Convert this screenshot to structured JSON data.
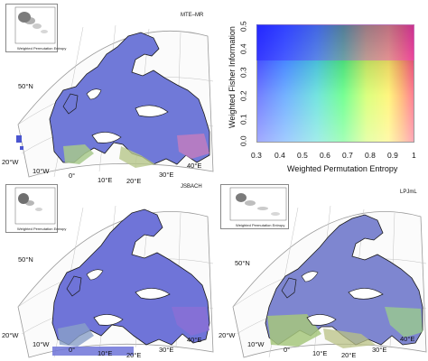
{
  "panels": [
    {
      "model": "MTE–MR",
      "lat_labels": [
        "50°N",
        "20°W"
      ],
      "lon_labels": [
        "10°W",
        "0°",
        "10°E",
        "20°E",
        "30°E",
        "40°E"
      ]
    },
    {
      "model": "JSBACH",
      "lat_labels": [
        "50°N",
        "20°W"
      ],
      "lon_labels": [
        "10°W",
        "0°",
        "10°E",
        "20°E",
        "30°E",
        "40°E"
      ]
    },
    {
      "model": "LPJmL",
      "lat_labels": [
        "50°N",
        "20°W"
      ],
      "lon_labels": [
        "10°W",
        "0°",
        "10°E",
        "20°E",
        "30°E",
        "40°E"
      ]
    }
  ],
  "inset": {
    "ylabel": "Weighted Fisher Information",
    "xlabel": "Weighted Permutation Entropy",
    "xticks": [
      "0.3",
      "0.4",
      "0.5",
      "0.6",
      "0.7",
      "0.8",
      "0.9",
      "1"
    ],
    "yticks": [
      "0.1",
      "0.2",
      "0.3",
      "0.4",
      "0.5"
    ]
  },
  "legend": {
    "ylabel": "Weighted Fisher Information",
    "xlabel": "Weighted Permutation Entropy",
    "xticks": [
      "0.3",
      "0.4",
      "0.5",
      "0.6",
      "0.7",
      "0.8",
      "0.9",
      "1"
    ],
    "yticks": [
      "0.0",
      "0.1",
      "0.2",
      "0.3",
      "0.4",
      "0.5"
    ]
  },
  "colors": {
    "ocean": "#ffffff",
    "land_main": "#6f78d6",
    "land_green": "#9fca8a",
    "land_purple": "#8a6fd0",
    "land_pink": "#c27ab8",
    "coast": "#1a1a1a",
    "grid": "#b0b0b0"
  }
}
